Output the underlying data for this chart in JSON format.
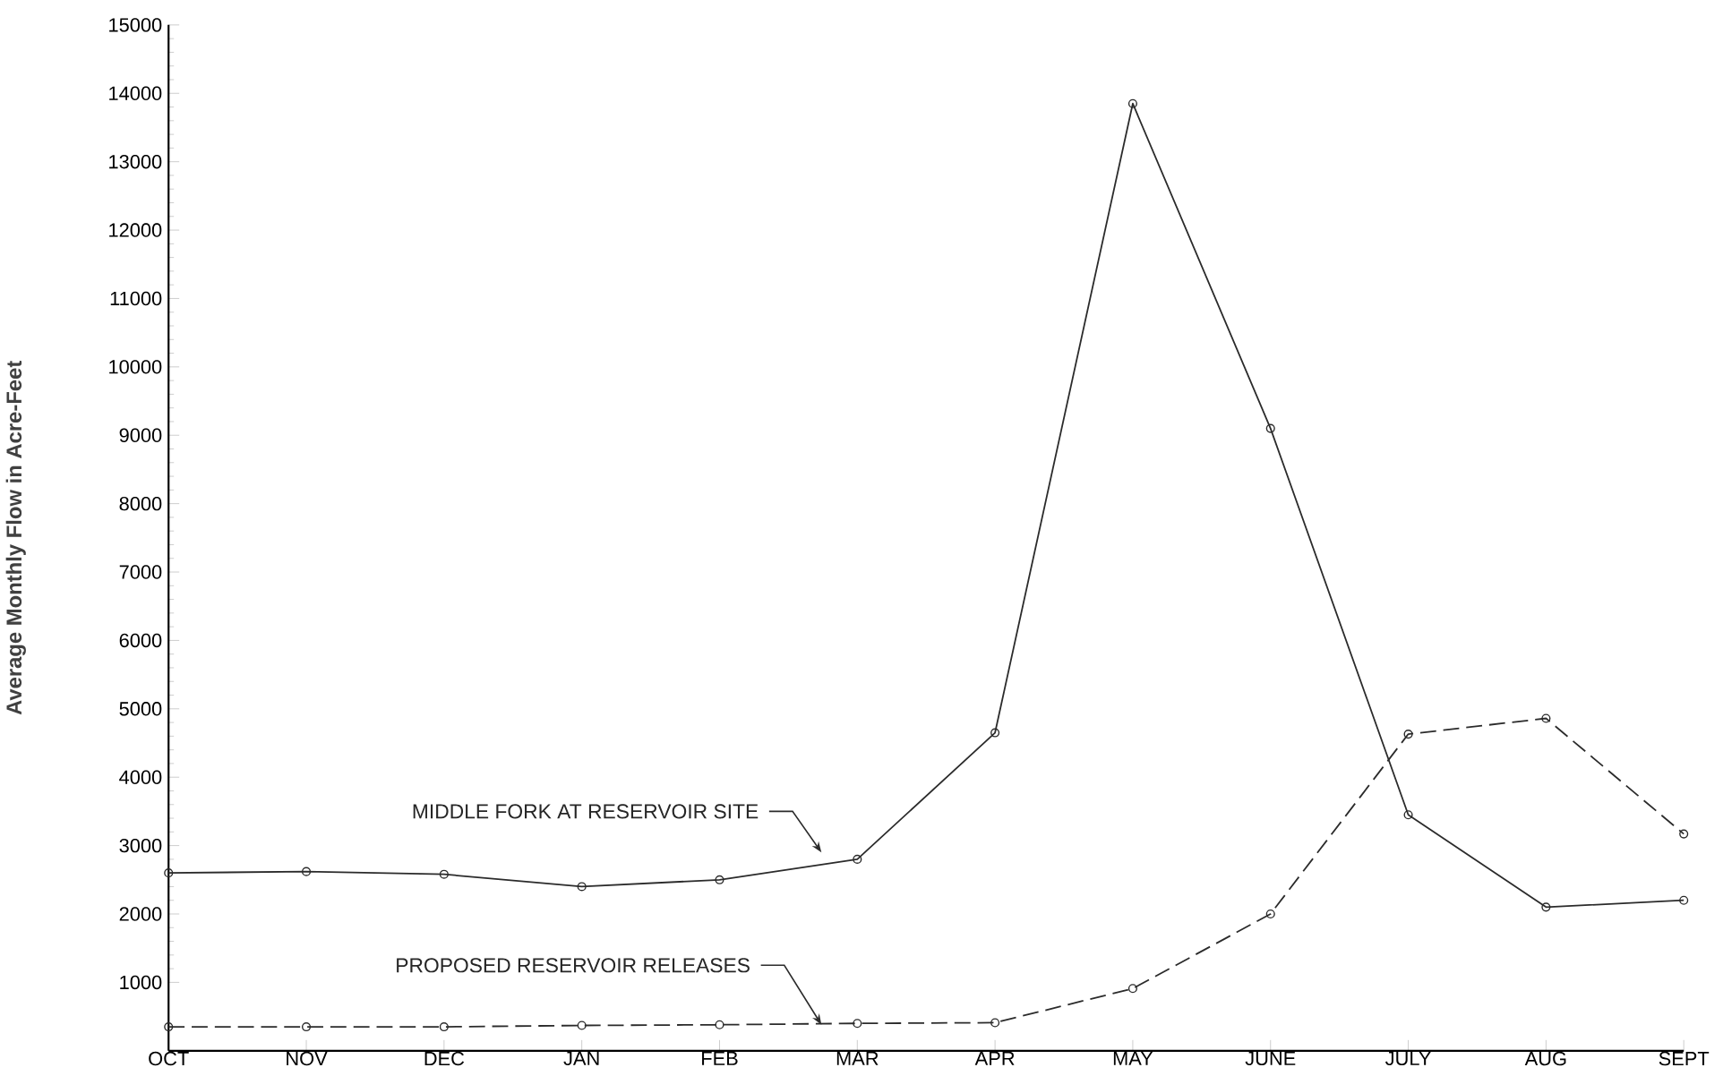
{
  "chart_data": {
    "type": "line",
    "ylabel": "Average Monthly Flow in Acre-Feet",
    "categories": [
      "OCT",
      "NOV",
      "DEC",
      "JAN",
      "FEB",
      "MAR",
      "APR",
      "MAY",
      "JUNE",
      "JULY",
      "AUG",
      "SEPT"
    ],
    "series": [
      {
        "name": "MIDDLE FORK AT RESERVOIR SITE",
        "color": "#2b2b2b",
        "line_style": "solid",
        "values": [
          2600,
          2620,
          2580,
          2400,
          2500,
          2800,
          4650,
          13850,
          9100,
          3450,
          2100,
          2200
        ]
      },
      {
        "name": "PROPOSED RESERVOIR RELEASES",
        "color": "#2b2b2b",
        "line_style": "dashed",
        "values": [
          350,
          350,
          350,
          370,
          380,
          400,
          410,
          910,
          2000,
          4630,
          4860,
          3170
        ]
      }
    ],
    "ylim": [
      0,
      15000
    ],
    "yticks": [
      1000,
      2000,
      3000,
      4000,
      5000,
      6000,
      7000,
      8000,
      9000,
      10000,
      11000,
      12000,
      13000,
      14000,
      15000
    ],
    "marker": "circle",
    "grid": false
  }
}
